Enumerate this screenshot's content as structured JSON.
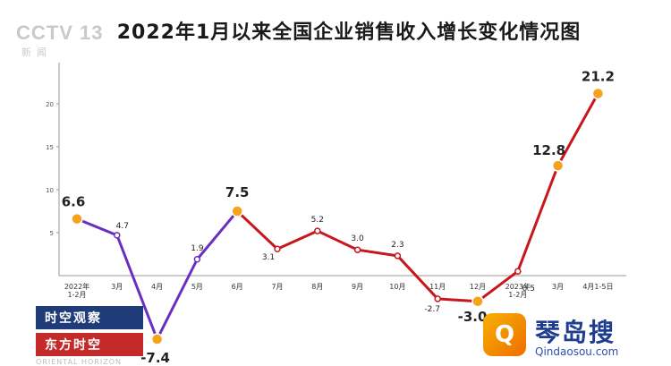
{
  "title": "2022年1月以来全国企业销售收入增长变化情况图",
  "logo": {
    "main": "CCTV 13",
    "sub": "新闻"
  },
  "program": {
    "top": "时空观察",
    "bottom": "东方时空",
    "english": "ORIENTAL HORIZON"
  },
  "watermark": {
    "text": "琴岛搜",
    "url": "Qindaosou.com",
    "icon": "q-logo-icon"
  },
  "colors": {
    "purple": "#6a2fbf",
    "red": "#c8161d",
    "orange": "#f4a31c",
    "axis": "#999999"
  },
  "chart_data": {
    "type": "line",
    "title": "2022年1月以来全国企业销售收入增长变化情况图",
    "y_ticks": [
      "5",
      "10",
      "15",
      "20"
    ],
    "ylim": [
      -8,
      23
    ],
    "grid": false,
    "legend": "none",
    "categories": [
      "2022年\n1-2月",
      "3月",
      "4月",
      "5月",
      "6月",
      "7月",
      "8月",
      "9月",
      "10月",
      "11月",
      "12月",
      "2023年\n1-2月",
      "3月",
      "4月1-5日"
    ],
    "values": [
      6.6,
      4.7,
      -7.4,
      1.9,
      7.5,
      3.1,
      5.2,
      3.0,
      2.3,
      -2.7,
      -3.0,
      0.5,
      12.8,
      21.2
    ],
    "labels": [
      "6.6",
      "4.7",
      "-7.4",
      "1.9",
      "7.5",
      "3.1",
      "5.2",
      "3.0",
      "2.3",
      "-2.7",
      "-3.0",
      "0.5",
      "12.8",
      "21.2"
    ],
    "purple_until_index": 4,
    "highlight_indices": [
      0,
      2,
      4,
      10,
      12,
      13
    ]
  }
}
